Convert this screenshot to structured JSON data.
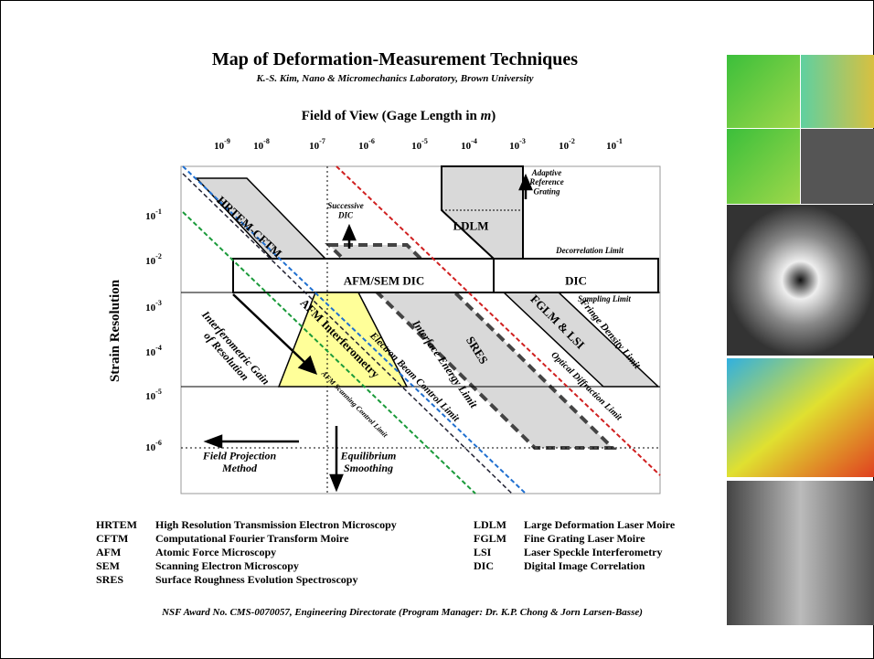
{
  "title": "Map of Deformation-Measurement Techniques",
  "subtitle": "K.-S. Kim, Nano & Micromechanics Laboratory, Brown University",
  "x_axis": {
    "label": [
      "Field of View (Gage Length in ",
      "m",
      ")"
    ],
    "ticks": [
      {
        "base": "10",
        "exp": "-9"
      },
      {
        "base": "10",
        "exp": "-8"
      },
      {
        "base": "10",
        "exp": "-7"
      },
      {
        "base": "10",
        "exp": "-6"
      },
      {
        "base": "10",
        "exp": "-5"
      },
      {
        "base": "10",
        "exp": "-4"
      },
      {
        "base": "10",
        "exp": "-3"
      },
      {
        "base": "10",
        "exp": "-2"
      },
      {
        "base": "10",
        "exp": "-1"
      }
    ]
  },
  "y_axis": {
    "label": "Strain Resolution",
    "ticks": [
      {
        "base": "10",
        "exp": "-1"
      },
      {
        "base": "10",
        "exp": "-2"
      },
      {
        "base": "10",
        "exp": "-3"
      },
      {
        "base": "10",
        "exp": "-4"
      },
      {
        "base": "10",
        "exp": "-5"
      },
      {
        "base": "10",
        "exp": "-6"
      }
    ]
  },
  "regions": [
    {
      "lines": [
        "HRTEM-CFTM"
      ]
    },
    {
      "lines": [
        "AFM/SEM DIC"
      ]
    },
    {
      "lines": [
        "DIC"
      ]
    },
    {
      "lines": [
        "LDLM"
      ]
    },
    {
      "lines": [
        "SRES"
      ]
    },
    {
      "lines": [
        "FGLM & LSI"
      ]
    },
    {
      "lines": [
        "AFM Interferometry"
      ]
    },
    {
      "lines": [
        "Successive",
        "DIC"
      ]
    },
    {
      "lines": [
        "Adaptive",
        "Reference",
        "Grating"
      ]
    },
    {
      "lines": [
        "Decorrelation Limit"
      ]
    },
    {
      "lines": [
        "Sampling Limit"
      ]
    },
    {
      "lines": [
        "Fringe Density Limit"
      ]
    },
    {
      "lines": [
        "Optical Diffraction Limit"
      ]
    },
    {
      "lines": [
        "Interface Energy Limit"
      ]
    },
    {
      "lines": [
        "Electron Beam Control Limit"
      ]
    },
    {
      "lines": [
        "AFM Scanning Control Limit"
      ]
    },
    {
      "lines": [
        "Interferometric Gain",
        "of Resolution"
      ]
    },
    {
      "lines": [
        "Field Projection",
        "Method"
      ]
    },
    {
      "lines": [
        "Equilibrium",
        "Smoothing"
      ]
    }
  ],
  "legend": [
    [
      "HRTEM",
      "High Resolution Transmission Electron Microscopy"
    ],
    [
      "CFTM",
      "Computational Fourier Transform Moire"
    ],
    [
      "AFM",
      "Atomic Force Microscopy"
    ],
    [
      "SEM",
      "Scanning Electron Microscopy"
    ],
    [
      "SRES",
      "Surface Roughness Evolution Spectroscopy"
    ],
    [
      "LDLM",
      "Large Deformation Laser Moire"
    ],
    [
      "FGLM",
      "Fine Grating Laser Moire"
    ],
    [
      "LSI",
      "Laser Speckle Interferometry"
    ],
    [
      "DIC",
      "Digital Image Correlation"
    ]
  ],
  "footer": "NSF Award No. CMS-0070057, Engineering Directorate (Program Manager: Dr. K.P. Chong  & Jorn Larsen-Basse)"
}
